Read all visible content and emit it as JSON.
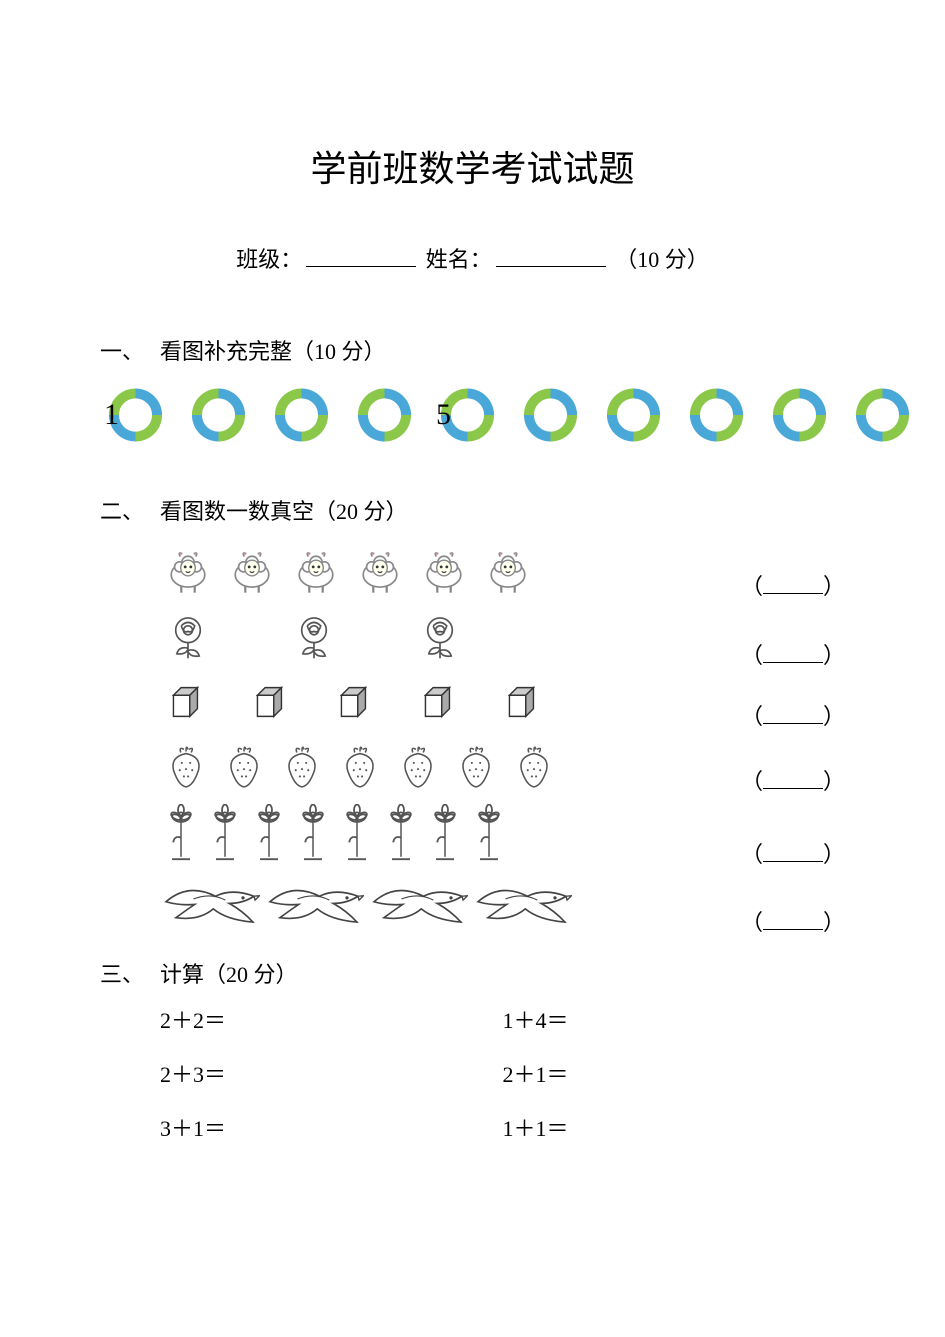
{
  "title": "学前班数学考试试题",
  "info": {
    "class_label": "班级：",
    "name_label": "姓名：",
    "score_suffix": "（10 分）"
  },
  "section1": {
    "num": "一、",
    "title": "看图补充完整（10 分）",
    "chain": {
      "count": 10,
      "filled": {
        "0": "1",
        "4": "5"
      },
      "colors": {
        "green": "#8bc84a",
        "blue": "#4aa8d8"
      }
    }
  },
  "section2": {
    "num": "二、",
    "title": "看图数一数真空（20 分）",
    "rows": [
      {
        "type": "sheep",
        "count": 6,
        "size": 56,
        "gap": 8
      },
      {
        "type": "rose",
        "count": 3,
        "size": 56,
        "gap": 70
      },
      {
        "type": "cube",
        "count": 5,
        "size": 48,
        "gap": 36
      },
      {
        "type": "strawberry",
        "count": 7,
        "size": 52,
        "gap": 6
      },
      {
        "type": "flower",
        "count": 8,
        "size": 60,
        "gap": 2
      },
      {
        "type": "bird",
        "count": 4,
        "size": 100,
        "gap": 4
      }
    ],
    "paren_open": "（",
    "paren_close": "）"
  },
  "section3": {
    "num": "三、",
    "title": "计算（20 分）",
    "problems": [
      [
        "2＋2＝",
        "1＋4＝"
      ],
      [
        "2＋3＝",
        "2＋1＝"
      ],
      [
        "3＋1＝",
        "1＋1＝"
      ]
    ]
  }
}
